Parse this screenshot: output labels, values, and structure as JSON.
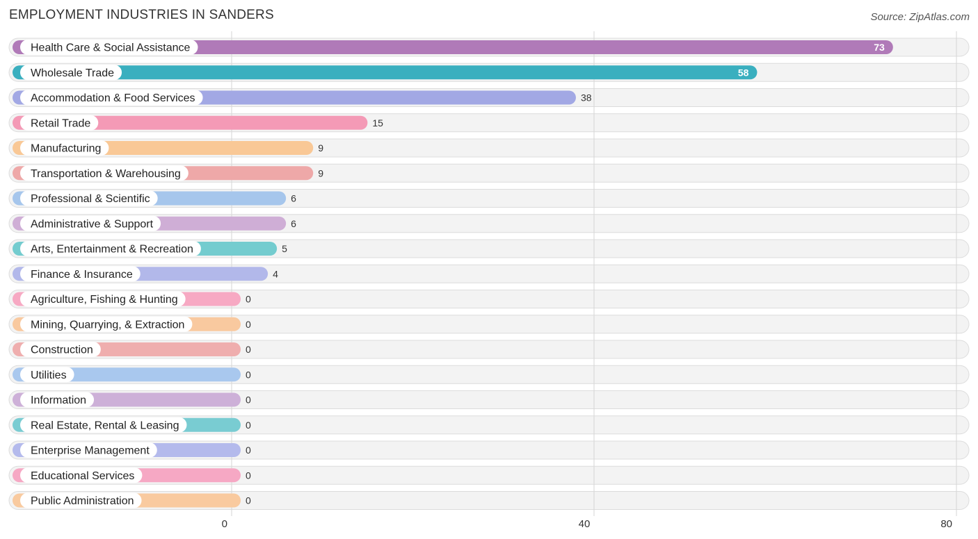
{
  "header": {
    "title": "EMPLOYMENT INDUSTRIES IN SANDERS",
    "source": "Source: ZipAtlas.com"
  },
  "chart_data": {
    "type": "bar",
    "orientation": "horizontal",
    "title": "EMPLOYMENT INDUSTRIES IN SANDERS",
    "xlim": [
      0,
      80
    ],
    "xticks": [
      0,
      40,
      80
    ],
    "grid": true,
    "categories": [
      "Health Care & Social Assistance",
      "Wholesale Trade",
      "Accommodation & Food Services",
      "Retail Trade",
      "Manufacturing",
      "Transportation & Warehousing",
      "Professional & Scientific",
      "Administrative & Support",
      "Arts, Entertainment & Recreation",
      "Finance & Insurance",
      "Agriculture, Fishing & Hunting",
      "Mining, Quarrying, & Extraction",
      "Construction",
      "Utilities",
      "Information",
      "Real Estate, Rental & Leasing",
      "Enterprise Management",
      "Educational Services",
      "Public Administration"
    ],
    "values": [
      73,
      58,
      38,
      15,
      9,
      9,
      6,
      6,
      5,
      4,
      0,
      0,
      0,
      0,
      0,
      0,
      0,
      0,
      0
    ],
    "colors": [
      "#b07ab8",
      "#3aafbf",
      "#a2a8e4",
      "#f49ab6",
      "#f9c896",
      "#eea8a8",
      "#a6c6ec",
      "#cfaed6",
      "#74cccf",
      "#b2b8ea",
      "#f7a9c3",
      "#f9c99f",
      "#efaeae",
      "#a9c8ee",
      "#cdb0d8",
      "#79ccd2",
      "#b4baec",
      "#f6a8c4",
      "#f9ca9f"
    ]
  }
}
